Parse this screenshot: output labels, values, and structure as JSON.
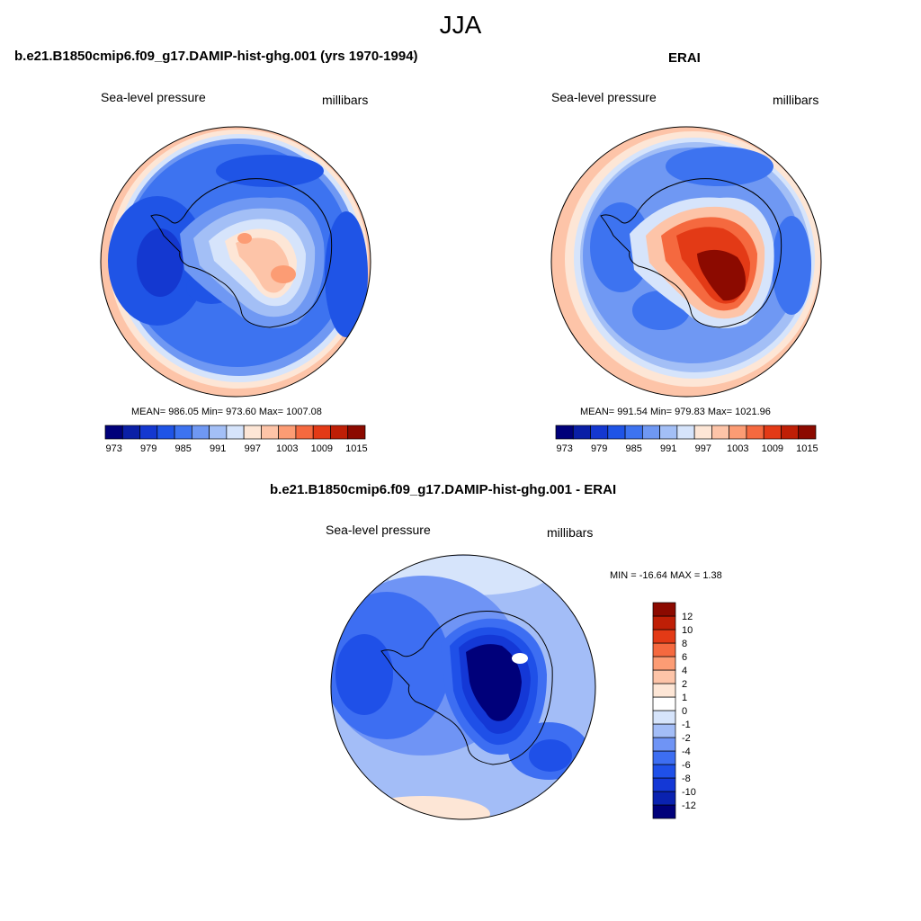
{
  "figure": {
    "season": "JJA"
  },
  "panels": [
    {
      "title": "b.e21.B1850cmip6.f09_g17.DAMIP-hist-ghg.001 (yrs 1970-1994)",
      "variable": "Sea-level pressure",
      "units": "millibars",
      "stats": "MEAN= 986.05  Min= 973.60  Max= 1007.08"
    },
    {
      "title": "ERAI",
      "variable": "Sea-level pressure",
      "units": "millibars",
      "stats": "MEAN= 991.54  Min= 979.83  Max= 1021.96"
    },
    {
      "title": "b.e21.B1850cmip6.f09_g17.DAMIP-hist-ghg.001 - ERAI",
      "variable": "Sea-level pressure",
      "units": "millibars",
      "stats": "MIN = -16.64 MAX =   1.38"
    }
  ],
  "colors": {
    "slp_scale": [
      "#00007a",
      "#0a1fa6",
      "#1438d0",
      "#1f54e6",
      "#3d73f0",
      "#6f98f3",
      "#a3bff6",
      "#d6e4fb",
      "#fde6d6",
      "#fdc4a8",
      "#fc9c74",
      "#f5693f",
      "#e33a16",
      "#bf1f06",
      "#8c0a00"
    ],
    "diff_scale": [
      "#00007a",
      "#0a22b0",
      "#1438d6",
      "#1f50e8",
      "#3d6ef2",
      "#6f94f5",
      "#a3bdf7",
      "#d6e4fb",
      "#ffffff",
      "#fde6d6",
      "#fdc4a8",
      "#fc9c74",
      "#f5693f",
      "#e33a16",
      "#bf1f06",
      "#8c0a00"
    ]
  },
  "chart_data": [
    {
      "type": "heatmap",
      "projection": "south-polar-stereographic",
      "colorbar": {
        "orientation": "horizontal",
        "levels": [
          973,
          976,
          979,
          982,
          985,
          988,
          991,
          994,
          997,
          1000,
          1003,
          1006,
          1009,
          1012,
          1015
        ],
        "tick_labels": [
          "973",
          "979",
          "985",
          "991",
          "997",
          "1003",
          "1009",
          "1015"
        ]
      },
      "mean": 986.05,
      "min": 973.6,
      "max": 1007.08
    },
    {
      "type": "heatmap",
      "projection": "south-polar-stereographic",
      "colorbar": {
        "orientation": "horizontal",
        "levels": [
          973,
          976,
          979,
          982,
          985,
          988,
          991,
          994,
          997,
          1000,
          1003,
          1006,
          1009,
          1012,
          1015
        ],
        "tick_labels": [
          "973",
          "979",
          "985",
          "991",
          "997",
          "1003",
          "1009",
          "1015"
        ]
      },
      "mean": 991.54,
      "min": 979.83,
      "max": 1021.96
    },
    {
      "type": "heatmap",
      "projection": "south-polar-stereographic",
      "colorbar": {
        "orientation": "vertical",
        "levels": [
          -12,
          -10,
          -8,
          -6,
          -4,
          -2,
          -1,
          0,
          1,
          2,
          4,
          6,
          8,
          10,
          12
        ],
        "tick_labels": [
          "12",
          "10",
          "8",
          "6",
          "4",
          "2",
          "1",
          "0",
          "-1",
          "-2",
          "-4",
          "-6",
          "-8",
          "-10",
          "-12"
        ]
      },
      "min": -16.64,
      "max": 1.38
    }
  ]
}
